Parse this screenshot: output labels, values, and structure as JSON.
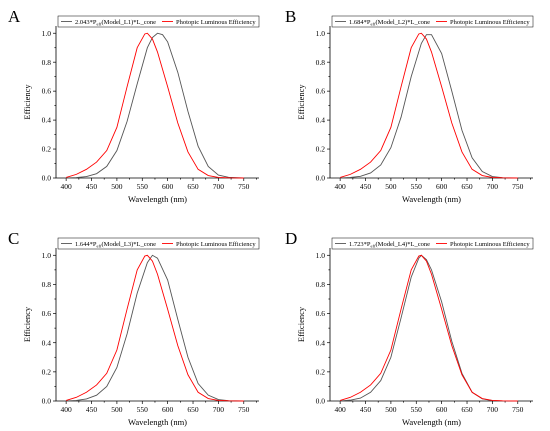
{
  "colors": {
    "model": "#555555",
    "photopic": "#ff0000"
  },
  "chart_data": [
    {
      "panel": "A",
      "type": "line",
      "xlabel": "Wavelength (nm)",
      "ylabel": "Efficiency",
      "xlim": [
        380,
        780
      ],
      "ylim": [
        0,
        1.05
      ],
      "xticks": [
        400,
        450,
        500,
        550,
        600,
        650,
        700,
        750
      ],
      "yticks": [
        0.0,
        0.2,
        0.4,
        0.6,
        0.8,
        1.0
      ],
      "legend_position": "top",
      "series": [
        {
          "name": "2.043*P_eff(Model_L1)*L_cone",
          "legend_prefix": "2.043*P",
          "legend_sub": "eff",
          "legend_suffix": "(Model_L1)*L_cone",
          "color": "#555555",
          "x": [
            400,
            420,
            440,
            460,
            480,
            500,
            520,
            540,
            560,
            570,
            580,
            590,
            600,
            620,
            640,
            660,
            680,
            700,
            720,
            750
          ],
          "y": [
            0.0,
            0.003,
            0.01,
            0.03,
            0.08,
            0.19,
            0.39,
            0.65,
            0.9,
            0.97,
            1.0,
            0.99,
            0.94,
            0.73,
            0.46,
            0.22,
            0.08,
            0.02,
            0.005,
            0.0
          ]
        },
        {
          "name": "Photopic Luminous Efficiency",
          "color": "#ff0000",
          "x": [
            400,
            420,
            440,
            460,
            480,
            500,
            520,
            540,
            555,
            560,
            570,
            580,
            600,
            620,
            640,
            660,
            680,
            700,
            720,
            750
          ],
          "y": [
            0.004,
            0.025,
            0.06,
            0.11,
            0.19,
            0.35,
            0.63,
            0.9,
            0.995,
            1.0,
            0.96,
            0.87,
            0.63,
            0.38,
            0.18,
            0.06,
            0.017,
            0.004,
            0.001,
            0.0
          ]
        }
      ]
    },
    {
      "panel": "B",
      "type": "line",
      "xlabel": "Wavelength (nm)",
      "ylabel": "Efficiency",
      "xlim": [
        380,
        780
      ],
      "ylim": [
        0,
        1.05
      ],
      "xticks": [
        400,
        450,
        500,
        550,
        600,
        650,
        700,
        750
      ],
      "yticks": [
        0.0,
        0.2,
        0.4,
        0.6,
        0.8,
        1.0
      ],
      "legend_position": "top",
      "series": [
        {
          "name": "1.684*P_eff(Model_L2)*L_cone",
          "legend_prefix": "1.684*P",
          "legend_sub": "eff",
          "legend_suffix": "(Model_L2)*L_cone",
          "color": "#555555",
          "x": [
            400,
            420,
            440,
            460,
            480,
            500,
            520,
            540,
            560,
            570,
            580,
            600,
            620,
            640,
            660,
            680,
            700,
            720,
            750
          ],
          "y": [
            0.0,
            0.004,
            0.012,
            0.035,
            0.09,
            0.21,
            0.42,
            0.7,
            0.93,
            0.99,
            0.99,
            0.86,
            0.6,
            0.33,
            0.14,
            0.045,
            0.01,
            0.002,
            0.0
          ]
        },
        {
          "name": "Photopic Luminous Efficiency",
          "color": "#ff0000",
          "x": [
            400,
            420,
            440,
            460,
            480,
            500,
            520,
            540,
            555,
            560,
            570,
            580,
            600,
            620,
            640,
            660,
            680,
            700,
            720,
            750
          ],
          "y": [
            0.004,
            0.025,
            0.06,
            0.11,
            0.19,
            0.35,
            0.63,
            0.9,
            0.995,
            1.0,
            0.96,
            0.87,
            0.63,
            0.38,
            0.18,
            0.06,
            0.017,
            0.004,
            0.001,
            0.0
          ]
        }
      ]
    },
    {
      "panel": "C",
      "type": "line",
      "xlabel": "Wavelength (nm)",
      "ylabel": "Efficiency",
      "xlim": [
        380,
        780
      ],
      "ylim": [
        0,
        1.05
      ],
      "xticks": [
        400,
        450,
        500,
        550,
        600,
        650,
        700,
        750
      ],
      "yticks": [
        0.0,
        0.2,
        0.4,
        0.6,
        0.8,
        1.0
      ],
      "legend_position": "top",
      "series": [
        {
          "name": "1.644*P_eff(Model_L3)*L_cone",
          "legend_prefix": "1.644*P",
          "legend_sub": "eff",
          "legend_suffix": "(Model_L3)*L_cone",
          "color": "#555555",
          "x": [
            400,
            420,
            440,
            460,
            480,
            500,
            520,
            540,
            560,
            570,
            580,
            600,
            620,
            640,
            660,
            680,
            700,
            720,
            750
          ],
          "y": [
            0.0,
            0.004,
            0.014,
            0.04,
            0.1,
            0.23,
            0.46,
            0.74,
            0.95,
            1.0,
            0.98,
            0.83,
            0.56,
            0.3,
            0.12,
            0.04,
            0.01,
            0.002,
            0.0
          ]
        },
        {
          "name": "Photopic Luminous Efficiency",
          "color": "#ff0000",
          "x": [
            400,
            420,
            440,
            460,
            480,
            500,
            520,
            540,
            555,
            560,
            570,
            580,
            600,
            620,
            640,
            660,
            680,
            700,
            720,
            750
          ],
          "y": [
            0.004,
            0.025,
            0.06,
            0.11,
            0.19,
            0.35,
            0.63,
            0.9,
            0.995,
            1.0,
            0.96,
            0.87,
            0.63,
            0.38,
            0.18,
            0.06,
            0.017,
            0.004,
            0.001,
            0.0
          ]
        }
      ]
    },
    {
      "panel": "D",
      "type": "line",
      "xlabel": "Wavelength (nm)",
      "ylabel": "Efficiency",
      "xlim": [
        380,
        780
      ],
      "ylim": [
        0,
        1.05
      ],
      "xticks": [
        400,
        450,
        500,
        550,
        600,
        650,
        700,
        750
      ],
      "yticks": [
        0.0,
        0.2,
        0.4,
        0.6,
        0.8,
        1.0
      ],
      "legend_position": "top",
      "series": [
        {
          "name": "1.723*P_eff(Model_L4)*L_cone",
          "legend_prefix": "1.723*P",
          "legend_sub": "eff",
          "legend_suffix": "(Model_L4)*L_cone",
          "color": "#555555",
          "x": [
            400,
            420,
            440,
            460,
            480,
            500,
            520,
            540,
            555,
            560,
            570,
            580,
            600,
            620,
            640,
            660,
            680,
            700,
            720,
            750
          ],
          "y": [
            0.0,
            0.006,
            0.02,
            0.06,
            0.14,
            0.3,
            0.57,
            0.85,
            0.98,
            1.0,
            0.97,
            0.9,
            0.68,
            0.41,
            0.19,
            0.06,
            0.015,
            0.003,
            0.0005,
            0.0
          ]
        },
        {
          "name": "Photopic Luminous Efficiency",
          "color": "#ff0000",
          "x": [
            400,
            420,
            440,
            460,
            480,
            500,
            520,
            540,
            555,
            560,
            570,
            580,
            600,
            620,
            640,
            660,
            680,
            700,
            720,
            750
          ],
          "y": [
            0.004,
            0.025,
            0.06,
            0.11,
            0.19,
            0.35,
            0.63,
            0.9,
            0.995,
            1.0,
            0.96,
            0.87,
            0.63,
            0.38,
            0.18,
            0.06,
            0.017,
            0.004,
            0.001,
            0.0
          ]
        }
      ]
    }
  ]
}
